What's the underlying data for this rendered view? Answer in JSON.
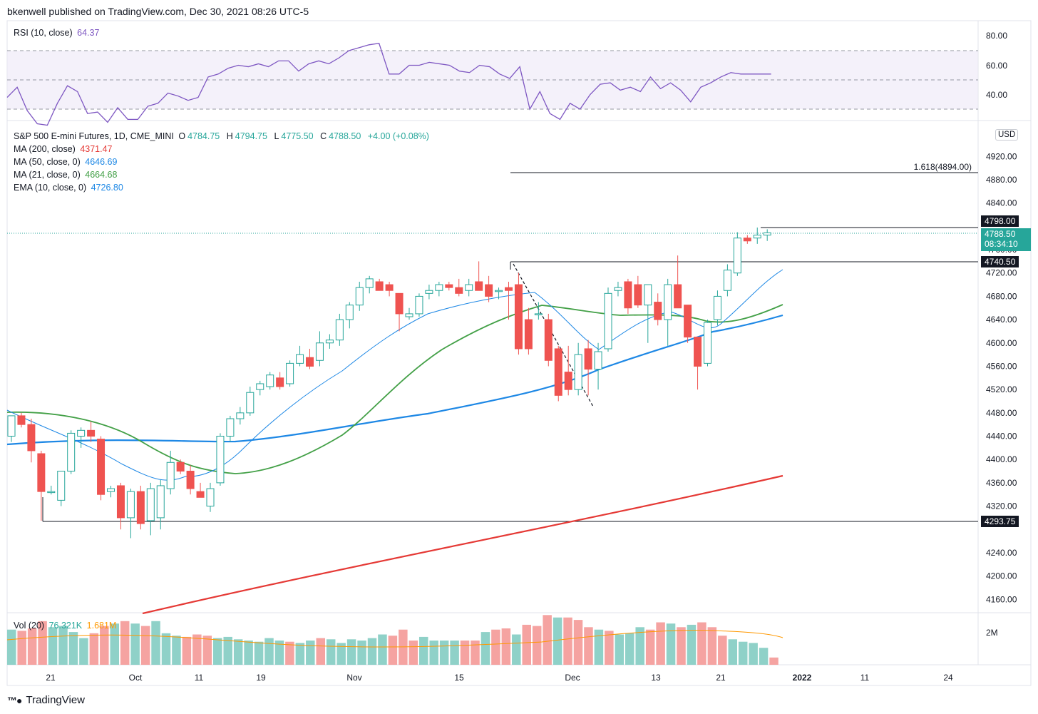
{
  "header": {
    "text": "bkenwell published on TradingView.com, Dec 30, 2021 08:26 UTC-5"
  },
  "rsi": {
    "label": "RSI (10, close)",
    "value": "64.37",
    "axis": [
      "80.00",
      "60.00",
      "40.00"
    ],
    "color": "#7e57c2"
  },
  "main": {
    "title_symbol": "S&P 500 E-mini Futures, 1D, CME_MINI",
    "ohlc": {
      "o_label": "O",
      "o": "4784.75",
      "h_label": "H",
      "h": "4794.75",
      "l_label": "L",
      "l": "4775.50",
      "c_label": "C",
      "c": "4788.50",
      "change": "+4.00 (+0.08%)"
    },
    "indicators": [
      {
        "label": "MA (200, close)",
        "value": "4371.47",
        "color": "#e53935"
      },
      {
        "label": "MA (50, close, 0)",
        "value": "4646.69",
        "color": "#1e88e5"
      },
      {
        "label": "MA (21, close, 0)",
        "value": "4664.68",
        "color": "#43a047"
      },
      {
        "label": "EMA (10, close, 0)",
        "value": "4726.80",
        "color": "#1e88e5"
      }
    ],
    "currency": "USD",
    "price_axis": [
      "4920.00",
      "4880.00",
      "4840.00",
      "4760.00",
      "4720.00",
      "4680.00",
      "4640.00",
      "4600.00",
      "4560.00",
      "4520.00",
      "4480.00",
      "4440.00",
      "4400.00",
      "4360.00",
      "4320.00",
      "4240.00",
      "4200.00",
      "4160.00"
    ],
    "fib_label": "1.618(4894.00)",
    "tags": {
      "level_high": "4798.00",
      "last_price": "4788.50",
      "countdown": "08:34:10",
      "level_mid": "4740.50",
      "level_low": "4293.75"
    }
  },
  "volume": {
    "label": "Vol (20)",
    "value": "76.321K",
    "ma_value": "1.681M",
    "axis": "2M"
  },
  "x_axis": [
    "21",
    "Oct",
    "11",
    "19",
    "Nov",
    "15",
    "Dec",
    "13",
    "21",
    "2022",
    "11",
    "24"
  ],
  "footer": {
    "brand": "TradingView"
  },
  "colors": {
    "up": "#26a69a",
    "down": "#ef5350",
    "vol_up": "#8fd1c8",
    "vol_down": "#f5a3a1",
    "vol_ma": "#ff9800"
  },
  "chart_data": {
    "type": "candlestick",
    "title": "S&P 500 E-mini Futures, 1D, CME_MINI",
    "x_ticks": [
      "21",
      "Oct",
      "11",
      "19",
      "Nov",
      "15",
      "Dec",
      "13",
      "21",
      "2022",
      "11",
      "24"
    ],
    "ylim": [
      4130,
      4950
    ],
    "candles": [
      {
        "o": 4440,
        "h": 4475,
        "l": 4430,
        "c": 4475
      },
      {
        "o": 4475,
        "h": 4480,
        "l": 4455,
        "c": 4460
      },
      {
        "o": 4460,
        "h": 4470,
        "l": 4395,
        "c": 4415
      },
      {
        "o": 4410,
        "h": 4415,
        "l": 4295,
        "c": 4345
      },
      {
        "o": 4345,
        "h": 4355,
        "l": 4340,
        "c": 4345
      },
      {
        "o": 4330,
        "h": 4380,
        "l": 4320,
        "c": 4380
      },
      {
        "o": 4380,
        "h": 4450,
        "l": 4375,
        "c": 4445
      },
      {
        "o": 4440,
        "h": 4455,
        "l": 4420,
        "c": 4450
      },
      {
        "o": 4450,
        "h": 4465,
        "l": 4430,
        "c": 4440
      },
      {
        "o": 4435,
        "h": 4440,
        "l": 4330,
        "c": 4340
      },
      {
        "o": 4345,
        "h": 4355,
        "l": 4335,
        "c": 4350
      },
      {
        "o": 4355,
        "h": 4360,
        "l": 4280,
        "c": 4300
      },
      {
        "o": 4300,
        "h": 4350,
        "l": 4265,
        "c": 4345
      },
      {
        "o": 4345,
        "h": 4355,
        "l": 4280,
        "c": 4290
      },
      {
        "o": 4295,
        "h": 4360,
        "l": 4270,
        "c": 4350
      },
      {
        "o": 4300,
        "h": 4365,
        "l": 4280,
        "c": 4355
      },
      {
        "o": 4350,
        "h": 4415,
        "l": 4340,
        "c": 4395
      },
      {
        "o": 4395,
        "h": 4400,
        "l": 4375,
        "c": 4380
      },
      {
        "o": 4380,
        "h": 4390,
        "l": 4340,
        "c": 4350
      },
      {
        "o": 4345,
        "h": 4360,
        "l": 4335,
        "c": 4335
      },
      {
        "o": 4320,
        "h": 4360,
        "l": 4310,
        "c": 4350
      },
      {
        "o": 4360,
        "h": 4445,
        "l": 4355,
        "c": 4440
      },
      {
        "o": 4440,
        "h": 4475,
        "l": 4430,
        "c": 4470
      },
      {
        "o": 4470,
        "h": 4490,
        "l": 4460,
        "c": 4480
      },
      {
        "o": 4480,
        "h": 4525,
        "l": 4475,
        "c": 4515
      },
      {
        "o": 4520,
        "h": 4535,
        "l": 4510,
        "c": 4530
      },
      {
        "o": 4525,
        "h": 4550,
        "l": 4520,
        "c": 4545
      },
      {
        "o": 4540,
        "h": 4550,
        "l": 4520,
        "c": 4525
      },
      {
        "o": 4530,
        "h": 4570,
        "l": 4525,
        "c": 4565
      },
      {
        "o": 4565,
        "h": 4595,
        "l": 4560,
        "c": 4580
      },
      {
        "o": 4575,
        "h": 4590,
        "l": 4555,
        "c": 4560
      },
      {
        "o": 4570,
        "h": 4620,
        "l": 4560,
        "c": 4600
      },
      {
        "o": 4600,
        "h": 4615,
        "l": 4590,
        "c": 4605
      },
      {
        "o": 4605,
        "h": 4650,
        "l": 4595,
        "c": 4640
      },
      {
        "o": 4640,
        "h": 4670,
        "l": 4625,
        "c": 4665
      },
      {
        "o": 4665,
        "h": 4705,
        "l": 4655,
        "c": 4695
      },
      {
        "o": 4695,
        "h": 4715,
        "l": 4685,
        "c": 4710
      },
      {
        "o": 4705,
        "h": 4710,
        "l": 4690,
        "c": 4690
      },
      {
        "o": 4700,
        "h": 4705,
        "l": 4680,
        "c": 4690
      },
      {
        "o": 4685,
        "h": 4685,
        "l": 4620,
        "c": 4650
      },
      {
        "o": 4645,
        "h": 4660,
        "l": 4640,
        "c": 4650
      },
      {
        "o": 4650,
        "h": 4685,
        "l": 4645,
        "c": 4680
      },
      {
        "o": 4685,
        "h": 4700,
        "l": 4675,
        "c": 4690
      },
      {
        "o": 4690,
        "h": 4705,
        "l": 4680,
        "c": 4700
      },
      {
        "o": 4700,
        "h": 4705,
        "l": 4690,
        "c": 4695
      },
      {
        "o": 4695,
        "h": 4710,
        "l": 4680,
        "c": 4685
      },
      {
        "o": 4690,
        "h": 4710,
        "l": 4680,
        "c": 4700
      },
      {
        "o": 4705,
        "h": 4740,
        "l": 4690,
        "c": 4690
      },
      {
        "o": 4700,
        "h": 4715,
        "l": 4670,
        "c": 4680
      },
      {
        "o": 4690,
        "h": 4695,
        "l": 4675,
        "c": 4690
      },
      {
        "o": 4695,
        "h": 4705,
        "l": 4640,
        "c": 4690
      },
      {
        "o": 4700,
        "h": 4720,
        "l": 4580,
        "c": 4590
      },
      {
        "o": 4640,
        "h": 4660,
        "l": 4580,
        "c": 4590
      },
      {
        "o": 4650,
        "h": 4670,
        "l": 4640,
        "c": 4650
      },
      {
        "o": 4640,
        "h": 4650,
        "l": 4560,
        "c": 4570
      },
      {
        "o": 4590,
        "h": 4595,
        "l": 4500,
        "c": 4510
      },
      {
        "o": 4550,
        "h": 4595,
        "l": 4510,
        "c": 4520
      },
      {
        "o": 4520,
        "h": 4600,
        "l": 4510,
        "c": 4580
      },
      {
        "o": 4590,
        "h": 4605,
        "l": 4510,
        "c": 4555
      },
      {
        "o": 4555,
        "h": 4600,
        "l": 4520,
        "c": 4585
      },
      {
        "o": 4590,
        "h": 4695,
        "l": 4585,
        "c": 4685
      },
      {
        "o": 4690,
        "h": 4705,
        "l": 4680,
        "c": 4695
      },
      {
        "o": 4705,
        "h": 4710,
        "l": 4650,
        "c": 4660
      },
      {
        "o": 4700,
        "h": 4715,
        "l": 4660,
        "c": 4665
      },
      {
        "o": 4665,
        "h": 4700,
        "l": 4600,
        "c": 4700
      },
      {
        "o": 4670,
        "h": 4685,
        "l": 4630,
        "c": 4640
      },
      {
        "o": 4640,
        "h": 4710,
        "l": 4595,
        "c": 4700
      },
      {
        "o": 4700,
        "h": 4750,
        "l": 4660,
        "c": 4660
      },
      {
        "o": 4665,
        "h": 4665,
        "l": 4600,
        "c": 4610
      },
      {
        "o": 4610,
        "h": 4610,
        "l": 4520,
        "c": 4560
      },
      {
        "o": 4565,
        "h": 4640,
        "l": 4560,
        "c": 4635
      },
      {
        "o": 4640,
        "h": 4690,
        "l": 4630,
        "c": 4680
      },
      {
        "o": 4690,
        "h": 4735,
        "l": 4680,
        "c": 4725
      },
      {
        "o": 4720,
        "h": 4790,
        "l": 4715,
        "c": 4780
      },
      {
        "o": 4780,
        "h": 4785,
        "l": 4770,
        "c": 4775
      },
      {
        "o": 4780,
        "h": 4798,
        "l": 4770,
        "c": 4785
      },
      {
        "o": 4785,
        "h": 4795,
        "l": 4775,
        "c": 4789
      }
    ],
    "ma200": [
      [
        4130,
        4205
      ],
      [
        4371,
        4371
      ]
    ],
    "rsi": [
      48,
      55,
      39,
      30,
      29,
      44,
      56,
      52,
      37,
      38,
      31,
      41,
      33,
      33,
      42,
      44,
      51,
      49,
      46,
      48,
      62,
      64,
      68,
      70,
      69,
      71,
      69,
      73,
      73,
      66,
      71,
      73,
      71,
      75,
      80,
      82,
      84,
      85,
      64,
      64,
      70,
      70,
      72,
      71,
      70,
      66,
      65,
      70,
      69,
      64,
      61,
      69,
      40,
      52,
      37,
      33,
      44,
      40,
      50,
      57,
      58,
      53,
      55,
      52,
      62,
      54,
      58,
      53,
      45,
      55,
      58,
      62,
      65,
      64,
      64,
      64,
      64
    ],
    "volume": [
      1.45,
      1.4,
      1.5,
      1.8,
      1.55,
      1.6,
      1.35,
      1.1,
      1.3,
      1.6,
      1.7,
      1.8,
      1.7,
      1.6,
      1.8,
      1.3,
      1.2,
      1.15,
      1.25,
      1.2,
      1.1,
      1.15,
      1.05,
      1.0,
      0.95,
      1.1,
      1.0,
      0.95,
      0.9,
      1.0,
      1.1,
      1.05,
      0.9,
      1.05,
      1.0,
      1.1,
      1.25,
      1.2,
      1.45,
      1.0,
      1.15,
      1.0,
      1.0,
      1.0,
      1.0,
      1.0,
      1.35,
      1.45,
      1.5,
      1.25,
      1.65,
      1.6,
      2.05,
      1.95,
      1.95,
      1.85,
      1.55,
      1.45,
      1.4,
      1.25,
      1.3,
      1.55,
      1.45,
      1.75,
      1.7,
      1.55,
      1.65,
      1.75,
      1.55,
      1.2,
      1.05,
      0.95,
      0.9,
      0.7,
      0.3
    ]
  }
}
